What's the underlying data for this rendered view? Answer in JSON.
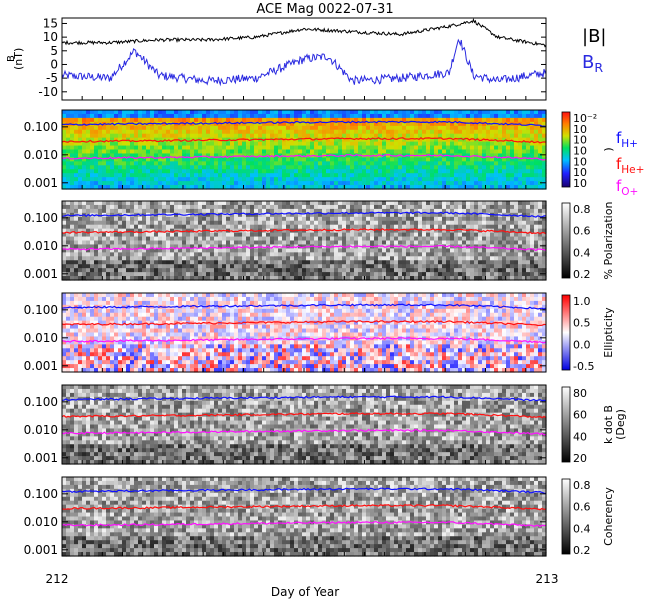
{
  "title": "ACE Mag 0022-07-31",
  "xlabel": "Day of Year",
  "x_ticks": [
    "212",
    "213"
  ],
  "legend": {
    "b_magnitude": "|B|",
    "b_radial": "B",
    "b_radial_sub": "R",
    "f_h": "f",
    "f_h_sub": "H+",
    "f_he": "f",
    "f_he_sub": "He+",
    "f_o": "f",
    "f_o_sub": "O+"
  },
  "colors": {
    "b_magnitude": "#000000",
    "b_radial": "#2a2ae0",
    "f_h": "#1010ff",
    "f_he": "#ff1010",
    "f_o": "#ff10ff"
  },
  "top_panel": {
    "ylabel": "B",
    "ylabel2": "(nT)",
    "y_ticks": [
      "15",
      "10",
      "5",
      "0",
      "-5",
      "-10"
    ],
    "ylim": [
      -13,
      17
    ]
  },
  "spectro_panels": [
    {
      "name": "power",
      "y_ticks": [
        "0.100",
        "0.010",
        "0.001"
      ],
      "colorbar_label": ")",
      "colorbar_ticks": [
        "10⁻²",
        "10",
        "10",
        "10",
        "10",
        "10",
        "10"
      ],
      "colormap": "rainbow"
    },
    {
      "name": "polarization",
      "y_ticks": [
        "0.100",
        "0.010",
        "0.001"
      ],
      "colorbar_label": "% Polarization",
      "colorbar_ticks": [
        "0.8",
        "0.6",
        "0.4",
        "0.2"
      ],
      "colormap": "gray"
    },
    {
      "name": "ellipticity",
      "y_ticks": [
        "0.100",
        "0.010",
        "0.001"
      ],
      "colorbar_label": "Ellipticity",
      "colorbar_ticks": [
        "1.0",
        "0.5",
        "0.0",
        "-0.5"
      ],
      "colormap": "bwr"
    },
    {
      "name": "kdotb",
      "y_ticks": [
        "0.100",
        "0.010",
        "0.001"
      ],
      "colorbar_label": "k dot B",
      "colorbar_label2": "(Deg)",
      "colorbar_ticks": [
        "80",
        "60",
        "40",
        "20"
      ],
      "colormap": "gray"
    },
    {
      "name": "coherency",
      "y_ticks": [
        "0.100",
        "0.010",
        "0.001"
      ],
      "colorbar_label": "Coherency",
      "colorbar_ticks": [
        "0.8",
        "0.6",
        "0.4",
        "0.2"
      ],
      "colormap": "gray"
    }
  ],
  "chart_data": [
    {
      "type": "line",
      "x_range": [
        212,
        213
      ],
      "ylim": [
        -13,
        17
      ],
      "series": [
        {
          "name": "|B|",
          "x": [
            212.0,
            212.1,
            212.2,
            212.3,
            212.4,
            212.5,
            212.6,
            212.7,
            212.8,
            212.85,
            212.9,
            213.0
          ],
          "values": [
            8,
            8,
            9,
            9,
            10,
            13,
            12,
            11,
            14,
            16,
            10,
            7
          ]
        },
        {
          "name": "B_R",
          "x": [
            212.0,
            212.1,
            212.15,
            212.2,
            212.3,
            212.4,
            212.5,
            212.55,
            212.6,
            212.7,
            212.8,
            212.82,
            212.85,
            212.9,
            213.0
          ],
          "values": [
            -4,
            -5,
            5,
            -4,
            -6,
            -5,
            2,
            3,
            -6,
            -5,
            -3,
            10,
            -4,
            -6,
            -3
          ]
        }
      ]
    },
    {
      "type": "line",
      "description_of_axes": "frequency (log) vs day of year",
      "x_range": [
        212,
        213
      ],
      "ylim_log": [
        0.0006,
        0.4
      ],
      "series": [
        {
          "name": "f_H+",
          "x": [
            212.0,
            212.2,
            212.4,
            212.6,
            212.8,
            213.0
          ],
          "values": [
            0.12,
            0.13,
            0.14,
            0.15,
            0.15,
            0.11
          ]
        },
        {
          "name": "f_He+",
          "x": [
            212.0,
            212.2,
            212.4,
            212.6,
            212.8,
            213.0
          ],
          "values": [
            0.03,
            0.032,
            0.035,
            0.038,
            0.038,
            0.028
          ]
        },
        {
          "name": "f_O+",
          "x": [
            212.0,
            212.2,
            212.4,
            212.6,
            212.8,
            213.0
          ],
          "values": [
            0.0075,
            0.008,
            0.0088,
            0.0095,
            0.0095,
            0.007
          ]
        }
      ]
    }
  ]
}
